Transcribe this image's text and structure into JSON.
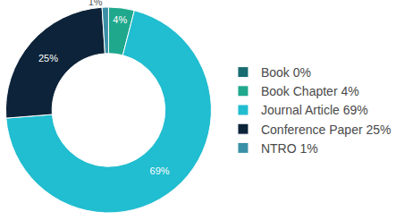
{
  "chart_data": {
    "type": "pie",
    "categories": [
      "Book 0%",
      "Book Chapter 4%",
      "Journal Article 69%",
      "Conference Paper 25%",
      "NTRO 1%"
    ],
    "values": [
      0,
      4,
      69,
      25,
      1
    ],
    "value_labels": [
      null,
      "4%",
      "69%",
      "25%",
      "1%"
    ],
    "colors": [
      "#166c70",
      "#1fa88c",
      "#21bdd0",
      "#0c2339",
      "#3a90a6"
    ],
    "data_labels": true,
    "legend": "right"
  }
}
